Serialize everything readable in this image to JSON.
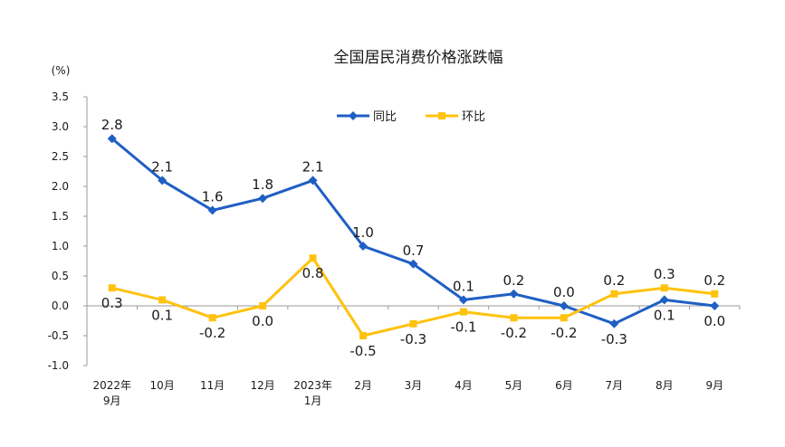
{
  "chart_data": {
    "type": "line",
    "title": "全国居民消费价格涨跌幅",
    "ylabel": "(%)",
    "xlabel": "",
    "ylim": [
      -1.0,
      3.5
    ],
    "yticks": [
      "3.5",
      "3.0",
      "2.5",
      "2.0",
      "1.5",
      "1.0",
      "0.5",
      "0.0",
      "-0.5",
      "-1.0"
    ],
    "categories": [
      [
        "2022年",
        "9月"
      ],
      [
        "10月"
      ],
      [
        "11月"
      ],
      [
        "12月"
      ],
      [
        "2023年",
        "1月"
      ],
      [
        "2月"
      ],
      [
        "3月"
      ],
      [
        "4月"
      ],
      [
        "5月"
      ],
      [
        "6月"
      ],
      [
        "7月"
      ],
      [
        "8月"
      ],
      [
        "9月"
      ]
    ],
    "grid": false,
    "legend": "top-center",
    "series": [
      {
        "name": "同比",
        "color": "#1f5fc4",
        "marker": "diamond",
        "values": [
          2.8,
          2.1,
          1.6,
          1.8,
          2.1,
          1.0,
          0.7,
          0.1,
          0.2,
          0.0,
          -0.3,
          0.1,
          0.0
        ],
        "labels": [
          "2.8",
          "2.1",
          "1.6",
          "1.8",
          "2.1",
          "1.0",
          "0.7",
          "0.1",
          "0.2",
          "0.0",
          "-0.3",
          "0.1",
          "0.0"
        ]
      },
      {
        "name": "环比",
        "color": "#ffc20e",
        "marker": "square",
        "values": [
          0.3,
          0.1,
          -0.2,
          0.0,
          0.8,
          -0.5,
          -0.3,
          -0.1,
          -0.2,
          -0.2,
          0.2,
          0.3,
          0.2
        ],
        "labels": [
          "0.3",
          "0.1",
          "-0.2",
          "0.0",
          "0.8",
          "-0.5",
          "-0.3",
          "-0.1",
          "-0.2",
          "-0.2",
          "0.2",
          "0.3",
          "0.2"
        ]
      }
    ]
  }
}
